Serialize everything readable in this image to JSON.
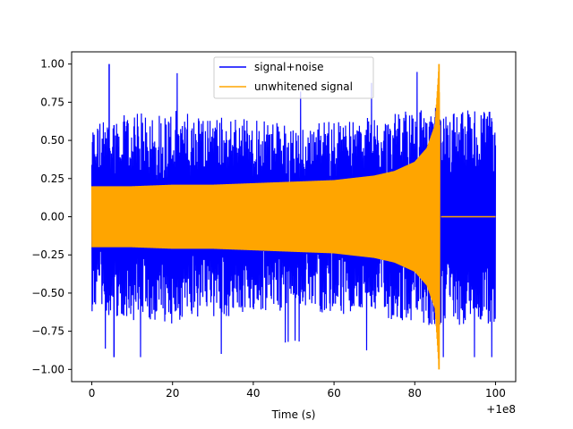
{
  "chart_data": {
    "type": "line",
    "xlabel": "Time (s)",
    "ylabel": "",
    "x_offset_label": "+1e8",
    "xlim": [
      -5,
      105
    ],
    "ylim": [
      -1.08,
      1.08
    ],
    "x_ticks": [
      0,
      20,
      40,
      60,
      80,
      100
    ],
    "y_ticks": [
      -1.0,
      -0.75,
      -0.5,
      -0.25,
      0.0,
      0.25,
      0.5,
      0.75,
      1.0
    ],
    "x_tick_labels": [
      "0",
      "20",
      "40",
      "60",
      "80",
      "100"
    ],
    "y_tick_labels": [
      "−1.00",
      "−0.75",
      "−0.50",
      "−0.25",
      "0.00",
      "0.25",
      "0.50",
      "0.75",
      "1.00"
    ],
    "legend_position": "top-center",
    "grid": false,
    "series": [
      {
        "name": "signal+noise",
        "color": "#0000ff",
        "x_range": [
          0,
          100
        ],
        "description_values": {
          "peak_max": 1.0,
          "peak_min": -0.92,
          "typical_upper_envelope": [
            [
              0,
              0.62
            ],
            [
              10,
              0.68
            ],
            [
              20,
              0.7
            ],
            [
              30,
              0.67
            ],
            [
              40,
              0.65
            ],
            [
              50,
              0.6
            ],
            [
              60,
              0.64
            ],
            [
              70,
              0.65
            ],
            [
              80,
              0.7
            ],
            [
              85,
              0.72
            ],
            [
              90,
              0.72
            ],
            [
              100,
              0.7
            ]
          ]
        }
      },
      {
        "name": "unwhitened signal",
        "color": "#ffa500",
        "x_range": [
          0,
          100
        ],
        "envelope": [
          [
            0,
            0.2
          ],
          [
            10,
            0.2
          ],
          [
            20,
            0.21
          ],
          [
            30,
            0.21
          ],
          [
            40,
            0.22
          ],
          [
            50,
            0.23
          ],
          [
            60,
            0.24
          ],
          [
            70,
            0.27
          ],
          [
            75,
            0.3
          ],
          [
            80,
            0.36
          ],
          [
            83,
            0.45
          ],
          [
            85,
            0.6
          ],
          [
            86,
            1.0
          ],
          [
            86.5,
            0.0
          ],
          [
            100,
            0.0
          ]
        ]
      }
    ]
  }
}
